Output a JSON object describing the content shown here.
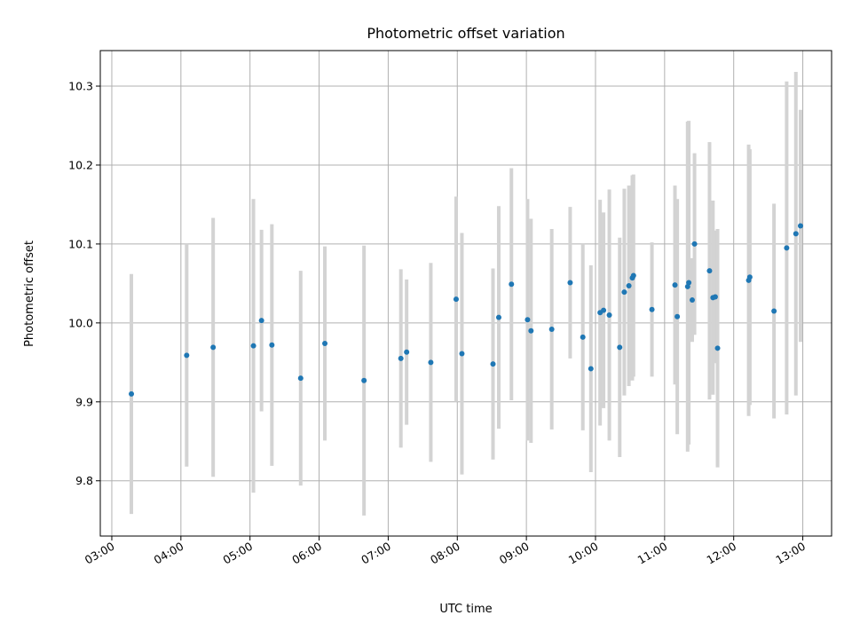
{
  "chart_data": {
    "type": "scatter",
    "title": "Photometric offset variation",
    "xlabel": "UTC time",
    "ylabel": "Photometric offset",
    "xlim": [
      "02:50",
      "13:25"
    ],
    "ylim": [
      9.73,
      10.345
    ],
    "grid": true,
    "x_ticks": [
      "03:00",
      "04:00",
      "05:00",
      "06:00",
      "07:00",
      "08:00",
      "09:00",
      "10:00",
      "11:00",
      "12:00",
      "13:00"
    ],
    "y_ticks": [
      9.8,
      9.9,
      10.0,
      10.1,
      10.2,
      10.3
    ],
    "y_tick_labels": [
      "9.8",
      "9.9",
      "10.0",
      "10.1",
      "10.2",
      "10.3"
    ],
    "colors": {
      "points": "#1f77b4",
      "errorbars": "#d3d3d3",
      "grid": "#b0b0b0"
    },
    "series": [
      {
        "points": [
          {
            "t": "03:17",
            "y": 9.91,
            "err": 0.152
          },
          {
            "t": "04:05",
            "y": 9.959,
            "err": 0.141
          },
          {
            "t": "04:28",
            "y": 9.969,
            "err": 0.164
          },
          {
            "t": "05:03",
            "y": 9.971,
            "err": 0.186
          },
          {
            "t": "05:10",
            "y": 10.003,
            "err": 0.115
          },
          {
            "t": "05:19",
            "y": 9.972,
            "err": 0.153
          },
          {
            "t": "05:44",
            "y": 9.93,
            "err": 0.136
          },
          {
            "t": "06:05",
            "y": 9.974,
            "err": 0.123
          },
          {
            "t": "06:39",
            "y": 9.927,
            "err": 0.171
          },
          {
            "t": "07:11",
            "y": 9.955,
            "err": 0.113
          },
          {
            "t": "07:16",
            "y": 9.963,
            "err": 0.092
          },
          {
            "t": "07:37",
            "y": 9.95,
            "err": 0.126
          },
          {
            "t": "07:59",
            "y": 10.03,
            "err": 0.13
          },
          {
            "t": "08:04",
            "y": 9.961,
            "err": 0.153
          },
          {
            "t": "08:31",
            "y": 9.948,
            "err": 0.121
          },
          {
            "t": "08:36",
            "y": 10.007,
            "err": 0.141
          },
          {
            "t": "08:47",
            "y": 10.049,
            "err": 0.147
          },
          {
            "t": "09:01",
            "y": 10.004,
            "err": 0.153
          },
          {
            "t": "09:04",
            "y": 9.99,
            "err": 0.142
          },
          {
            "t": "09:22",
            "y": 9.992,
            "err": 0.127
          },
          {
            "t": "09:38",
            "y": 10.051,
            "err": 0.096
          },
          {
            "t": "09:49",
            "y": 9.982,
            "err": 0.118
          },
          {
            "t": "09:56",
            "y": 9.942,
            "err": 0.131
          },
          {
            "t": "10:04",
            "y": 10.013,
            "err": 0.143
          },
          {
            "t": "10:07",
            "y": 10.016,
            "err": 0.124
          },
          {
            "t": "10:12",
            "y": 10.01,
            "err": 0.159
          },
          {
            "t": "10:21",
            "y": 9.969,
            "err": 0.139
          },
          {
            "t": "10:25",
            "y": 10.039,
            "err": 0.131
          },
          {
            "t": "10:29",
            "y": 10.047,
            "err": 0.127
          },
          {
            "t": "10:32",
            "y": 10.057,
            "err": 0.13
          },
          {
            "t": "10:33",
            "y": 10.06,
            "err": 0.128
          },
          {
            "t": "10:49",
            "y": 10.017,
            "err": 0.085
          },
          {
            "t": "11:09",
            "y": 10.048,
            "err": 0.126
          },
          {
            "t": "11:11",
            "y": 10.008,
            "err": 0.149
          },
          {
            "t": "11:20",
            "y": 10.046,
            "err": 0.209
          },
          {
            "t": "11:21",
            "y": 10.051,
            "err": 0.205
          },
          {
            "t": "11:24",
            "y": 10.029,
            "err": 0.053
          },
          {
            "t": "11:26",
            "y": 10.1,
            "err": 0.115
          },
          {
            "t": "11:39",
            "y": 10.066,
            "err": 0.163
          },
          {
            "t": "11:42",
            "y": 10.032,
            "err": 0.123
          },
          {
            "t": "11:44",
            "y": 10.033,
            "err": 0.084
          },
          {
            "t": "11:46",
            "y": 9.968,
            "err": 0.151
          },
          {
            "t": "12:13",
            "y": 10.054,
            "err": 0.172
          },
          {
            "t": "12:14",
            "y": 10.058,
            "err": 0.162
          },
          {
            "t": "12:35",
            "y": 10.015,
            "err": 0.136
          },
          {
            "t": "12:46",
            "y": 10.095,
            "err": 0.211
          },
          {
            "t": "12:54",
            "y": 10.113,
            "err": 0.205
          },
          {
            "t": "12:58",
            "y": 10.123,
            "err": 0.147
          }
        ]
      }
    ]
  }
}
